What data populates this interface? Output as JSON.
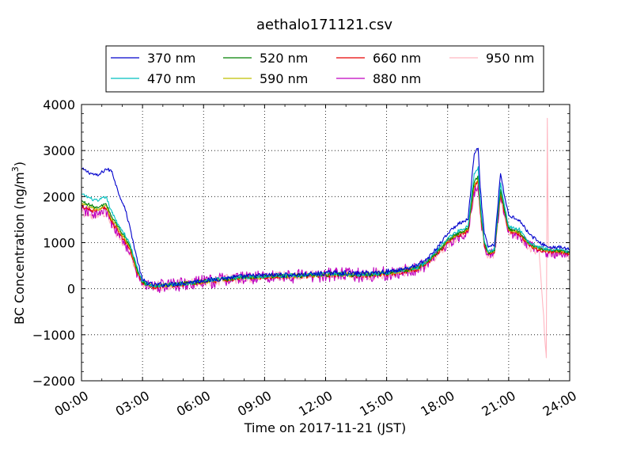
{
  "chart_data": {
    "type": "line",
    "title": "aethalo171121.csv",
    "xlabel": "Time on 2017-11-21 (JST)",
    "ylabel_main": "BC Concentration (ng/m",
    "ylabel_sup": "3",
    "ylabel_close": ")",
    "xlim": [
      0,
      24
    ],
    "ylim": [
      -2000,
      4000
    ],
    "xticks": [
      0,
      3,
      6,
      9,
      12,
      15,
      18,
      21,
      24
    ],
    "xtick_labels": [
      "00:00",
      "03:00",
      "06:00",
      "09:00",
      "12:00",
      "15:00",
      "18:00",
      "21:00",
      "24:00"
    ],
    "yticks": [
      -2000,
      -1000,
      0,
      1000,
      2000,
      3000,
      4000
    ],
    "ytick_labels": [
      "−2000",
      "−1000",
      "0",
      "1000",
      "2000",
      "3000",
      "4000"
    ],
    "grid": true,
    "legend_position": "top-center",
    "series": [
      {
        "name": "370 nm",
        "color": "#0000cc",
        "noise": 40,
        "x": [
          0,
          0.5,
          0.8,
          1.2,
          1.5,
          1.8,
          2.1,
          2.4,
          2.7,
          3.0,
          3.5,
          4.5,
          5.5,
          6.5,
          7.5,
          8.5,
          9.5,
          10.5,
          11.5,
          12.5,
          13.5,
          14.5,
          15.5,
          16.5,
          17.0,
          17.5,
          18.0,
          18.5,
          19.0,
          19.3,
          19.5,
          19.6,
          19.8,
          20.0,
          20.3,
          20.6,
          20.8,
          21.0,
          21.5,
          22.0,
          22.5,
          23.0,
          23.5,
          24.0
        ],
        "y": [
          2600,
          2500,
          2450,
          2600,
          2550,
          2100,
          1800,
          1300,
          700,
          180,
          80,
          100,
          150,
          200,
          250,
          280,
          300,
          300,
          320,
          350,
          330,
          350,
          400,
          500,
          650,
          900,
          1200,
          1400,
          1500,
          2900,
          3050,
          2200,
          1200,
          900,
          950,
          2500,
          2000,
          1600,
          1500,
          1200,
          1000,
          900,
          900,
          850
        ]
      },
      {
        "name": "470 nm",
        "color": "#00bfbf",
        "noise": 35,
        "x": [
          0,
          0.5,
          0.8,
          1.2,
          1.5,
          1.8,
          2.1,
          2.4,
          2.7,
          3.0,
          3.5,
          4.5,
          5.5,
          6.5,
          7.5,
          8.5,
          9.5,
          10.5,
          11.5,
          12.5,
          13.5,
          14.5,
          15.5,
          16.5,
          17.0,
          17.5,
          18.0,
          18.5,
          19.0,
          19.3,
          19.5,
          19.6,
          19.8,
          20.0,
          20.3,
          20.6,
          20.8,
          21.0,
          21.5,
          22.0,
          22.5,
          23.0,
          23.5,
          24.0
        ],
        "y": [
          2050,
          1950,
          1900,
          2000,
          1650,
          1400,
          1200,
          950,
          500,
          150,
          60,
          90,
          140,
          190,
          240,
          270,
          290,
          290,
          310,
          330,
          310,
          330,
          380,
          460,
          600,
          850,
          1100,
          1250,
          1350,
          2500,
          2650,
          1900,
          1050,
          800,
          850,
          2300,
          1800,
          1350,
          1300,
          1000,
          900,
          850,
          850,
          800
        ]
      },
      {
        "name": "520 nm",
        "color": "#008000",
        "noise": 35,
        "x": [
          0,
          0.5,
          0.8,
          1.2,
          1.5,
          1.8,
          2.1,
          2.4,
          2.7,
          3.0,
          3.5,
          4.5,
          5.5,
          6.5,
          7.5,
          8.5,
          9.5,
          10.5,
          11.5,
          12.5,
          13.5,
          14.5,
          15.5,
          16.5,
          17.0,
          17.5,
          18.0,
          18.5,
          19.0,
          19.3,
          19.5,
          19.6,
          19.8,
          20.0,
          20.3,
          20.6,
          20.8,
          21.0,
          21.5,
          22.0,
          22.5,
          23.0,
          23.5,
          24.0
        ],
        "y": [
          1900,
          1800,
          1750,
          1850,
          1550,
          1350,
          1150,
          900,
          450,
          140,
          60,
          90,
          130,
          180,
          230,
          260,
          280,
          280,
          300,
          320,
          300,
          320,
          370,
          450,
          580,
          800,
          1050,
          1200,
          1300,
          2300,
          2450,
          1800,
          1000,
          780,
          820,
          2150,
          1700,
          1300,
          1250,
          980,
          880,
          830,
          830,
          780
        ]
      },
      {
        "name": "590 nm",
        "color": "#bfbf00",
        "noise": 35,
        "x": [
          0,
          0.5,
          0.8,
          1.2,
          1.5,
          1.8,
          2.1,
          2.4,
          2.7,
          3.0,
          3.5,
          4.5,
          5.5,
          6.5,
          7.5,
          8.5,
          9.5,
          10.5,
          11.5,
          12.5,
          13.5,
          14.5,
          15.5,
          16.5,
          17.0,
          17.5,
          18.0,
          18.5,
          19.0,
          19.3,
          19.5,
          19.6,
          19.8,
          20.0,
          20.3,
          20.6,
          20.8,
          21.0,
          21.5,
          22.0,
          22.5,
          23.0,
          23.5,
          24.0
        ],
        "y": [
          1850,
          1750,
          1700,
          1800,
          1500,
          1300,
          1100,
          880,
          430,
          130,
          55,
          85,
          125,
          175,
          225,
          255,
          275,
          275,
          295,
          315,
          295,
          315,
          360,
          440,
          570,
          790,
          1030,
          1180,
          1280,
          2250,
          2400,
          1750,
          980,
          770,
          810,
          2100,
          1680,
          1280,
          1230,
          960,
          870,
          820,
          820,
          770
        ]
      },
      {
        "name": "660 nm",
        "color": "#e60000",
        "noise": 45,
        "x": [
          0,
          0.5,
          0.8,
          1.2,
          1.5,
          1.8,
          2.1,
          2.4,
          2.7,
          3.0,
          3.5,
          4.5,
          5.5,
          6.5,
          7.5,
          8.5,
          9.5,
          10.5,
          11.5,
          12.5,
          13.5,
          14.5,
          15.5,
          16.5,
          17.0,
          17.5,
          18.0,
          18.5,
          19.0,
          19.3,
          19.5,
          19.6,
          19.8,
          20.0,
          20.3,
          20.6,
          20.8,
          21.0,
          21.5,
          22.0,
          22.5,
          23.0,
          23.5,
          24.0
        ],
        "y": [
          1800,
          1700,
          1700,
          1750,
          1450,
          1250,
          1050,
          850,
          400,
          120,
          50,
          80,
          120,
          170,
          220,
          250,
          270,
          270,
          290,
          310,
          290,
          310,
          350,
          430,
          550,
          770,
          1000,
          1150,
          1250,
          2200,
          2350,
          1700,
          950,
          750,
          800,
          2050,
          1650,
          1250,
          1200,
          950,
          850,
          800,
          800,
          750
        ]
      },
      {
        "name": "880 nm",
        "color": "#bf00bf",
        "noise": 120,
        "x": [
          0,
          0.5,
          0.8,
          1.2,
          1.5,
          1.8,
          2.1,
          2.4,
          2.7,
          3.0,
          3.5,
          4.5,
          5.5,
          6.5,
          7.5,
          8.5,
          9.5,
          10.5,
          11.5,
          12.5,
          13.5,
          14.5,
          15.5,
          16.5,
          17.0,
          17.5,
          18.0,
          18.5,
          19.0,
          19.3,
          19.5,
          19.6,
          19.8,
          20.0,
          20.3,
          20.6,
          20.8,
          21.0,
          21.5,
          22.0,
          22.5,
          23.0,
          23.5,
          24.0
        ],
        "y": [
          1700,
          1650,
          1600,
          1700,
          1400,
          1200,
          1000,
          800,
          350,
          100,
          50,
          80,
          120,
          170,
          220,
          250,
          270,
          270,
          290,
          310,
          290,
          310,
          350,
          430,
          550,
          750,
          980,
          1120,
          1220,
          2100,
          2250,
          1650,
          920,
          720,
          780,
          2000,
          1600,
          1220,
          1180,
          930,
          830,
          780,
          780,
          730
        ]
      },
      {
        "name": "950 nm",
        "color": "#ffb6c1",
        "noise": 90,
        "x": [
          0,
          0.5,
          0.8,
          1.2,
          1.5,
          1.8,
          2.1,
          2.4,
          2.7,
          3.0,
          3.5,
          4.5,
          5.5,
          6.5,
          7.5,
          8.5,
          9.5,
          10.5,
          11.5,
          12.5,
          13.5,
          14.5,
          15.5,
          16.5,
          17.0,
          17.5,
          18.0,
          18.5,
          19.0,
          19.3,
          19.5,
          19.6,
          19.8,
          20.0,
          20.3,
          20.6,
          20.8,
          21.0,
          21.5,
          22.0,
          22.5,
          22.85,
          22.9,
          22.95,
          23.0,
          23.5,
          24.0
        ],
        "y": [
          1650,
          1600,
          1550,
          1650,
          1350,
          1150,
          950,
          780,
          330,
          100,
          50,
          80,
          120,
          170,
          220,
          250,
          270,
          270,
          290,
          310,
          290,
          310,
          350,
          420,
          540,
          740,
          960,
          1100,
          1200,
          2050,
          2200,
          1600,
          900,
          700,
          760,
          1950,
          1550,
          1200,
          1150,
          900,
          800,
          -1500,
          3700,
          800,
          780,
          760,
          720
        ]
      }
    ]
  }
}
